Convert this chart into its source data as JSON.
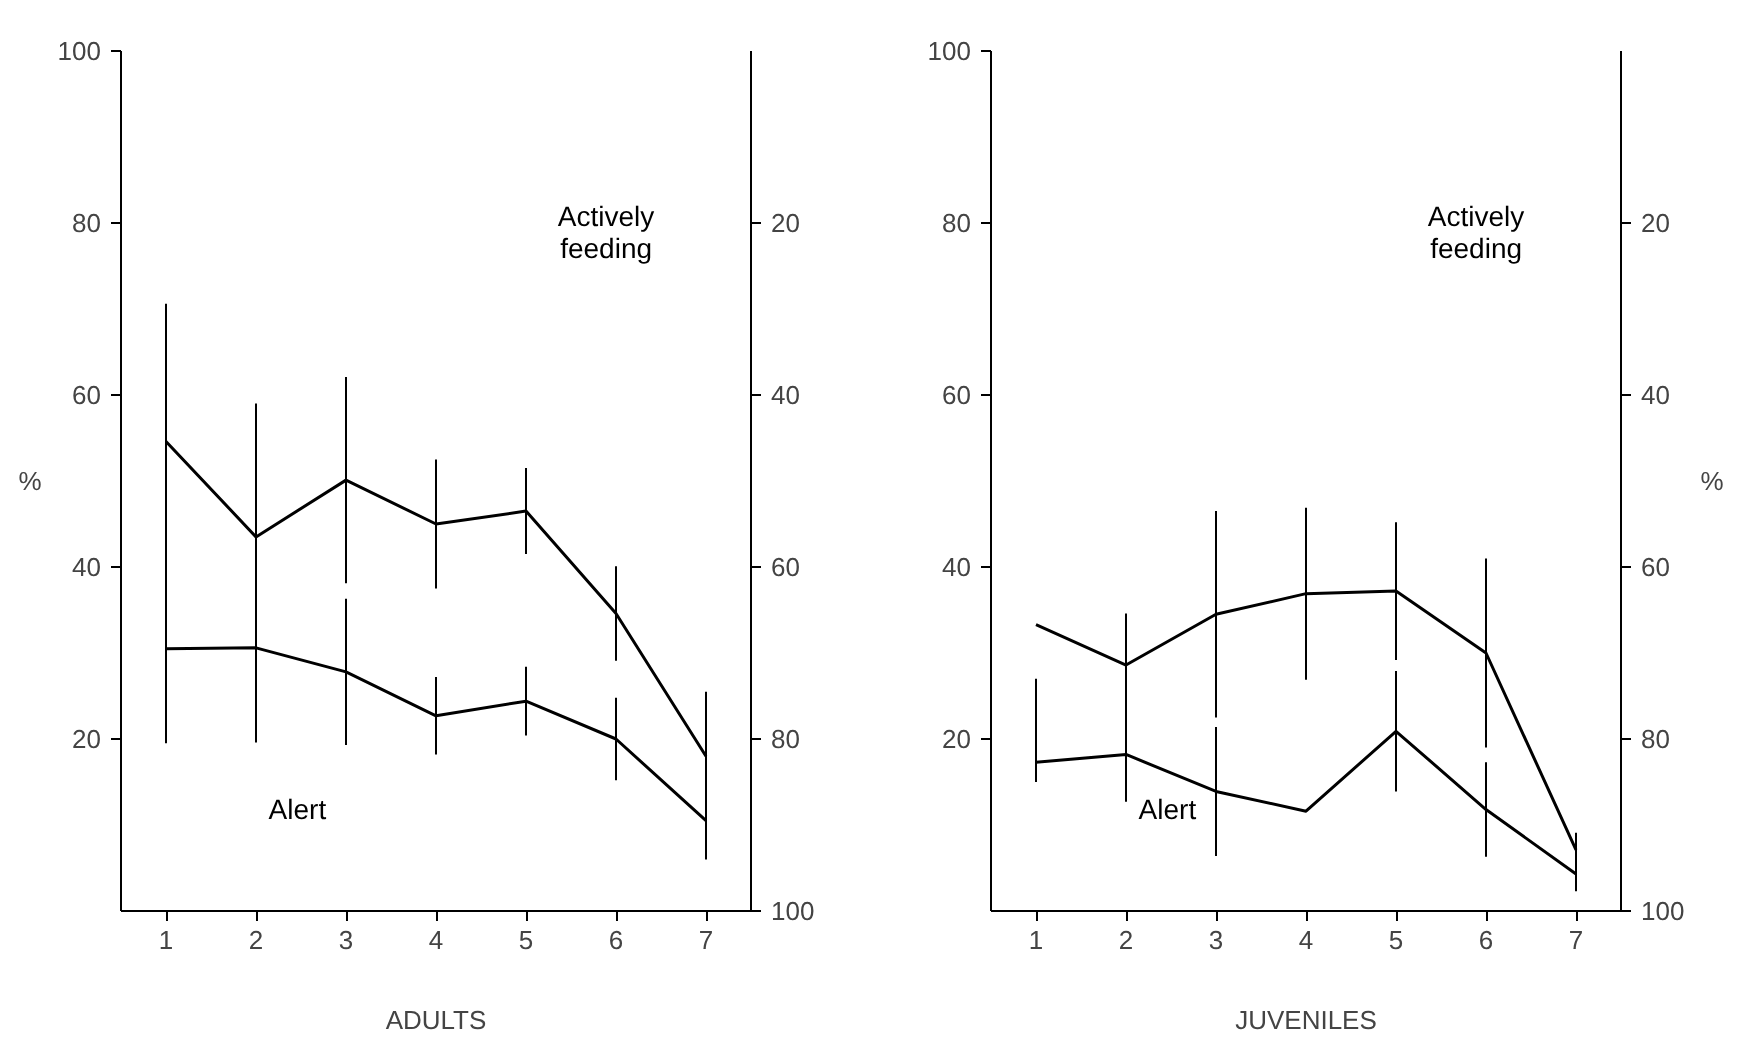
{
  "chart_data": [
    {
      "type": "line",
      "xlabel": "ADULTS",
      "ylabel": "%",
      "annotations": [
        "Actively feeding",
        "Alert"
      ],
      "x": [
        1,
        2,
        3,
        4,
        5,
        6,
        7
      ],
      "xlim": [
        0.5,
        7.5
      ],
      "xticks": [
        1,
        2,
        3,
        4,
        5,
        6,
        7
      ],
      "ylim": [
        0,
        100
      ],
      "yticks": [
        20,
        40,
        60,
        80,
        100
      ],
      "y2lim": [
        100,
        0
      ],
      "y2ticks": [
        20,
        40,
        60,
        80,
        100
      ],
      "grid": false,
      "marker": "none",
      "line_style": "solid",
      "series": [
        {
          "color": "#000000",
          "values": [
            54.6,
            43.5,
            50.1,
            45,
            46.5,
            34.6,
            18
          ],
          "errors": [
            16,
            15.5,
            12,
            7.5,
            5,
            5.5,
            7.5
          ]
        },
        {
          "color": "#000000",
          "values": [
            30.5,
            30.6,
            27.8,
            22.7,
            24.4,
            20,
            10.5
          ],
          "errors": [
            11,
            11,
            8.5,
            4.5,
            4,
            4.8,
            4.5
          ]
        }
      ]
    },
    {
      "type": "line",
      "xlabel": "JUVENILES",
      "y2label": "%",
      "annotations": [
        "Actively feeding",
        "Alert"
      ],
      "x": [
        1,
        2,
        3,
        4,
        5,
        6,
        7
      ],
      "xlim": [
        0.5,
        7.5
      ],
      "xticks": [
        1,
        2,
        3,
        4,
        5,
        6,
        7
      ],
      "ylim": [
        0,
        100
      ],
      "yticks": [
        20,
        40,
        60,
        80,
        100
      ],
      "y2lim": [
        100,
        0
      ],
      "y2ticks": [
        20,
        40,
        60,
        80,
        100
      ],
      "grid": false,
      "marker": "none",
      "line_style": "solid",
      "series": [
        {
          "color": "#000000",
          "values": [
            33.3,
            28.6,
            34.5,
            36.9,
            37.2,
            30,
            7.1
          ],
          "errors": [
            null,
            6,
            12,
            10,
            8,
            11,
            2
          ]
        },
        {
          "color": "#000000",
          "values": [
            17.3,
            18.2,
            13.9,
            11.6,
            20.9,
            11.8,
            4.3
          ],
          "errors": [
            [
              15,
              27
            ],
            5.5,
            7.5,
            null,
            7,
            5.5,
            2
          ]
        }
      ]
    }
  ]
}
